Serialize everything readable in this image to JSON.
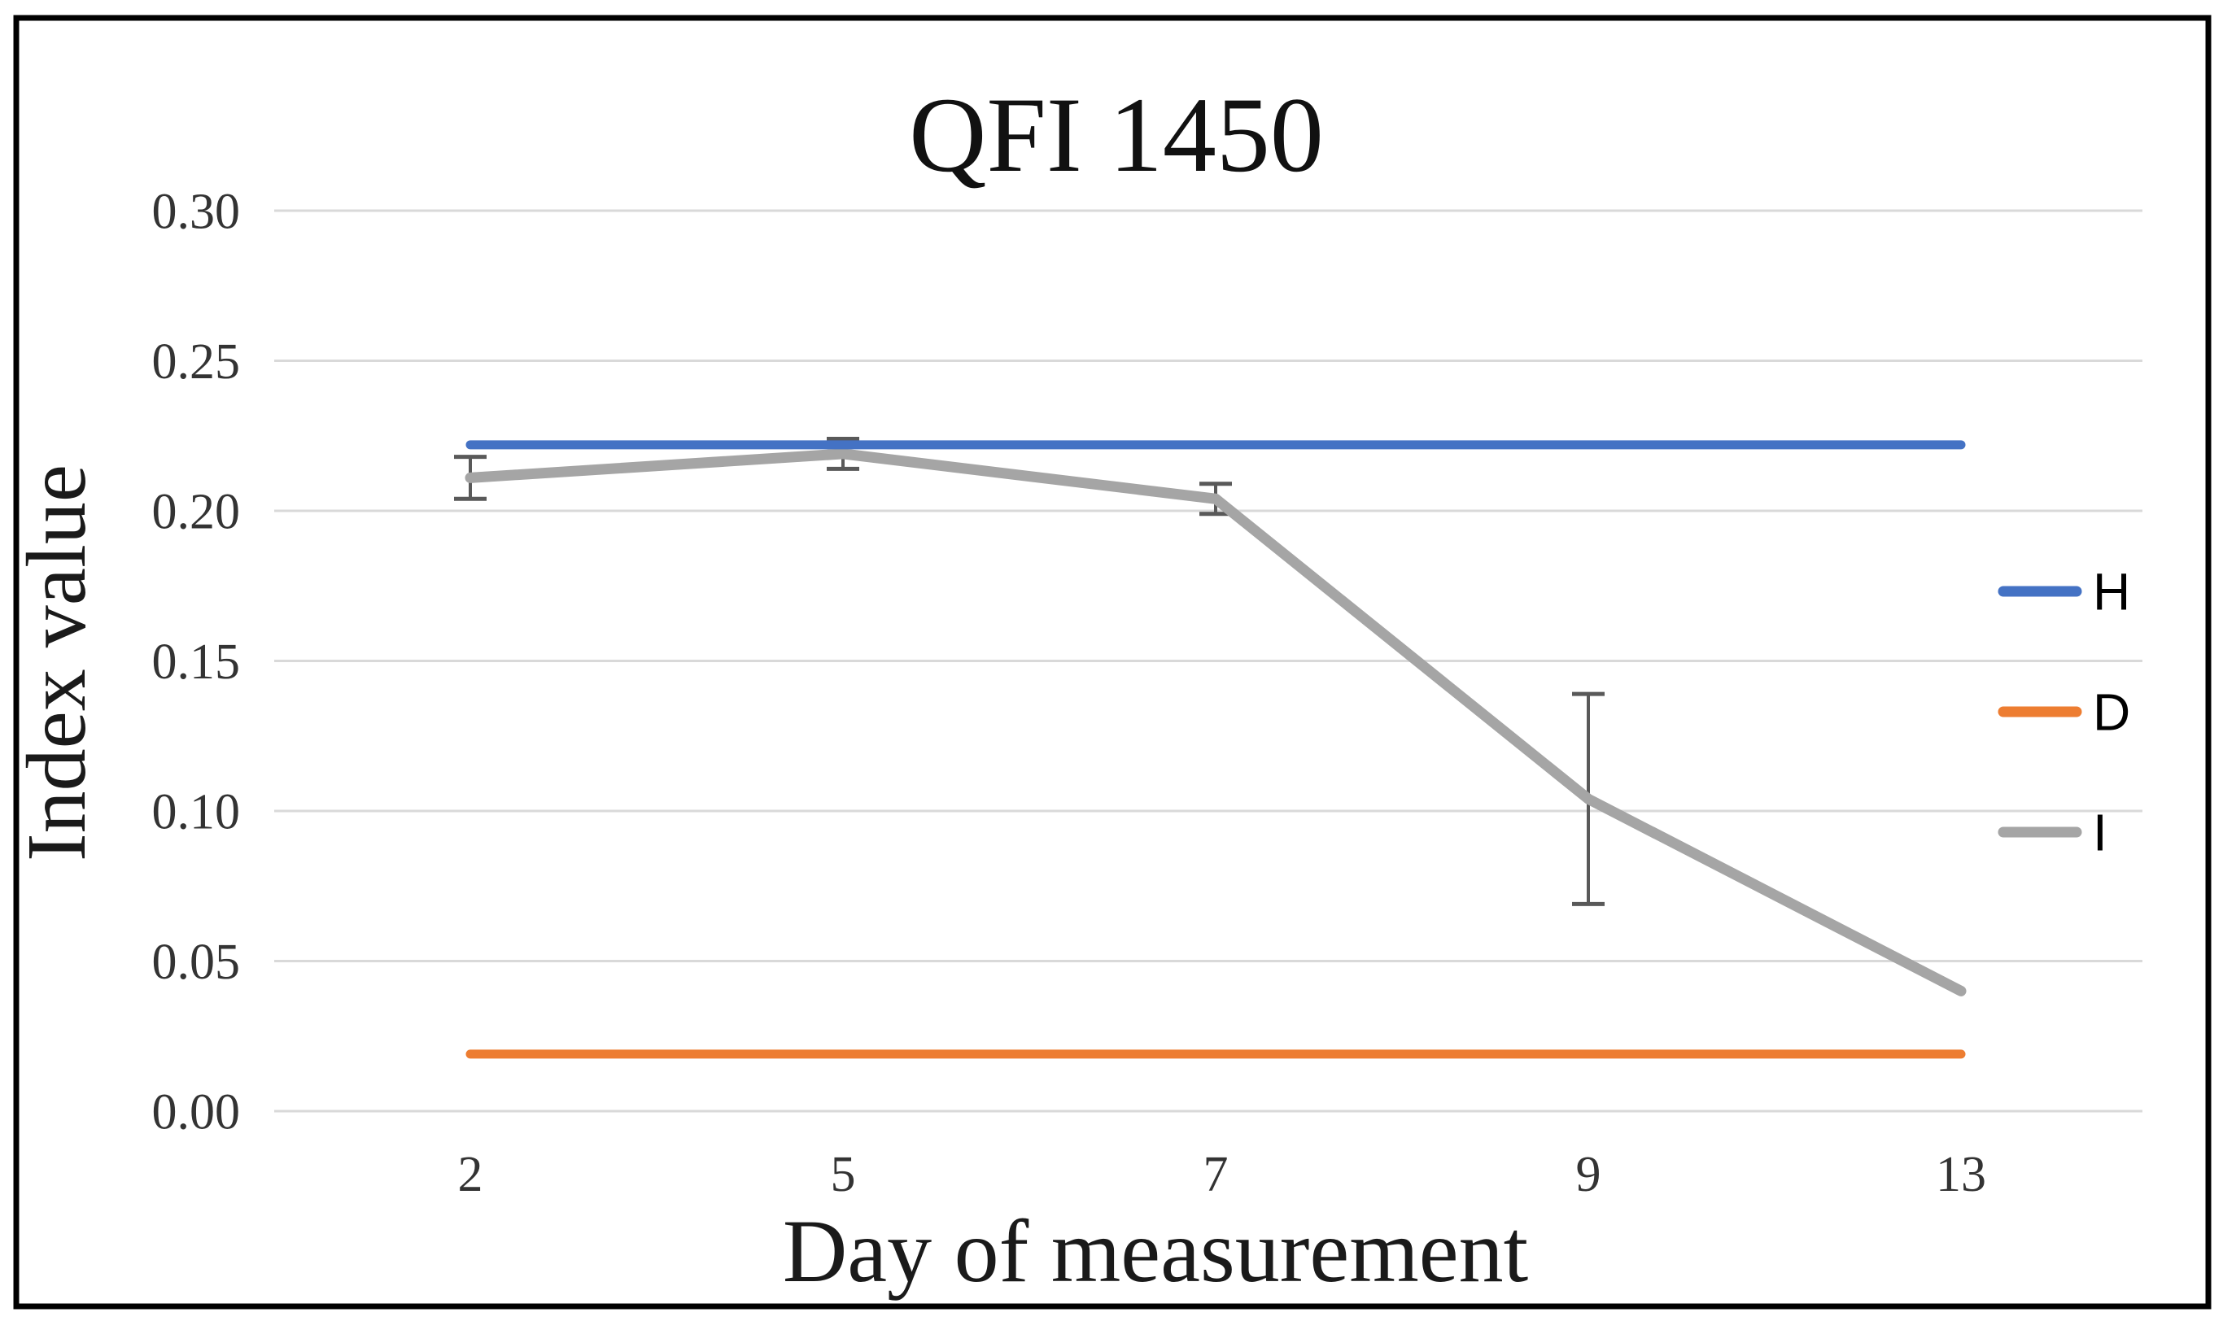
{
  "figure": {
    "background": "#ffffff",
    "border_color": "#000000"
  },
  "chart_data": {
    "type": "line",
    "title": "QFI 1450",
    "xlabel": "Day of measurement",
    "ylabel": "Index value",
    "categories": [
      "2",
      "5",
      "7",
      "9",
      "13"
    ],
    "series": [
      {
        "name": "H",
        "color": "#4472C4",
        "values": [
          0.222,
          0.222,
          0.222,
          0.222,
          0.222
        ],
        "error": [
          0,
          0,
          0,
          0,
          0
        ]
      },
      {
        "name": "D",
        "color": "#ED7D31",
        "values": [
          0.019,
          0.019,
          0.019,
          0.019,
          0.019
        ],
        "error": [
          0,
          0,
          0,
          0,
          0
        ]
      },
      {
        "name": "I",
        "color": "#A5A5A5",
        "values": [
          0.211,
          0.219,
          0.204,
          0.104,
          0.04
        ],
        "error": [
          0.007,
          0.005,
          0.005,
          0.035,
          0
        ]
      }
    ],
    "ylim": [
      0,
      0.3
    ],
    "ytick_step": 0.05,
    "ytick_labels": [
      "0.00",
      "0.05",
      "0.10",
      "0.15",
      "0.20",
      "0.25",
      "0.30"
    ],
    "grid": true,
    "gridline_color": "#D9D9D9",
    "errorbar_color": "#595959",
    "legend_position": "right"
  }
}
